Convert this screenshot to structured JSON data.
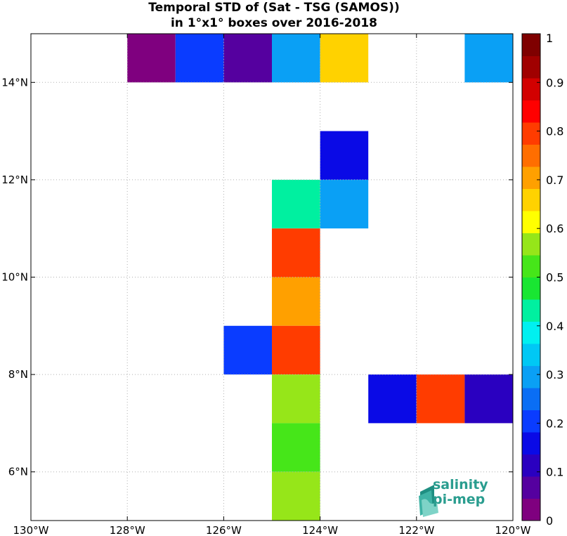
{
  "title_lines": [
    "Temporal STD of (Sat - TSG (SAMOS))",
    "in 1°x1° boxes over 2016-2018"
  ],
  "logo": {
    "line1": "salinity",
    "line2": "pi-mep",
    "color": "#2a9d8f"
  },
  "chart_data": {
    "type": "heatmap",
    "title": "Temporal STD of (Sat - TSG (SAMOS)) in 1°x1° boxes over 2016-2018",
    "x_range": [
      -130,
      -120
    ],
    "y_range": [
      5,
      15
    ],
    "x_ticks": [
      -130,
      -128,
      -126,
      -124,
      -122,
      -120
    ],
    "x_tick_labels": [
      "130°W",
      "128°W",
      "126°W",
      "124°W",
      "122°W",
      "120°W"
    ],
    "y_ticks": [
      6,
      8,
      10,
      12,
      14
    ],
    "y_tick_labels": [
      "6°N",
      "8°N",
      "10°N",
      "12°N",
      "14°N"
    ],
    "grid": true,
    "colorbar": {
      "range": [
        0,
        1
      ],
      "tick_values": [
        0,
        0.1,
        0.2,
        0.3,
        0.4,
        0.5,
        0.6,
        0.7,
        0.8,
        0.9,
        1
      ],
      "tick_labels": [
        "0",
        "0.1",
        "0.2",
        "0.3",
        "0.4",
        "0.5",
        "0.6",
        "0.7",
        "0.8",
        "0.9",
        "1"
      ],
      "colors": [
        "#7f007f",
        "#55009f",
        "#2a00c0",
        "#0a0ae6",
        "#0a3cff",
        "#0a6ef5",
        "#0aa0f5",
        "#00c8f5",
        "#00f0f0",
        "#00f0a0",
        "#19e632",
        "#46e619",
        "#96e619",
        "#ffff00",
        "#ffd200",
        "#ffa000",
        "#ff6e00",
        "#ff3c00",
        "#ff0000",
        "#d20000",
        "#a00000",
        "#7f0000"
      ]
    },
    "cells": [
      {
        "lon": -128,
        "lat": 14,
        "value": 0.03
      },
      {
        "lon": -127,
        "lat": 14,
        "value": 0.21
      },
      {
        "lon": -126,
        "lat": 14,
        "value": 0.09
      },
      {
        "lon": -125,
        "lat": 14,
        "value": 0.28
      },
      {
        "lon": -124,
        "lat": 14,
        "value": 0.67
      },
      {
        "lon": -121,
        "lat": 14,
        "value": 0.28
      },
      {
        "lon": -124,
        "lat": 12,
        "value": 0.17
      },
      {
        "lon": -125,
        "lat": 11,
        "value": 0.43
      },
      {
        "lon": -124,
        "lat": 11,
        "value": 0.31
      },
      {
        "lon": -125,
        "lat": 10,
        "value": 0.78
      },
      {
        "lon": -125,
        "lat": 9,
        "value": 0.72
      },
      {
        "lon": -126,
        "lat": 8,
        "value": 0.21
      },
      {
        "lon": -125,
        "lat": 8,
        "value": 0.78
      },
      {
        "lon": -125,
        "lat": 7,
        "value": 0.55
      },
      {
        "lon": -123,
        "lat": 7,
        "value": 0.17
      },
      {
        "lon": -122,
        "lat": 7,
        "value": 0.78
      },
      {
        "lon": -121,
        "lat": 7,
        "value": 0.13
      },
      {
        "lon": -125,
        "lat": 6,
        "value": 0.5
      },
      {
        "lon": -125,
        "lat": 5,
        "value": 0.55
      }
    ]
  }
}
